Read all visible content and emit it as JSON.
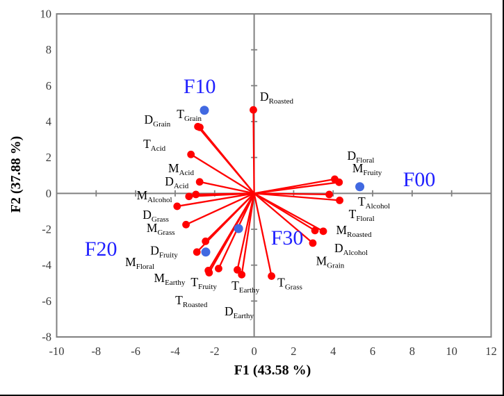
{
  "chart_data": {
    "type": "scatter",
    "subtype": "pca-biplot",
    "xlabel": "F1 (43.58 %)",
    "ylabel": "F2 (37.88 %)",
    "xlim": [
      -10,
      12
    ],
    "ylim": [
      -8,
      10
    ],
    "xticks": [
      -10,
      -8,
      -6,
      -4,
      -2,
      0,
      2,
      4,
      6,
      8,
      10,
      12
    ],
    "yticks": [
      10,
      8,
      6,
      4,
      2,
      0,
      -2,
      -4,
      -6,
      -8
    ],
    "grid": false,
    "legend": "none",
    "colors": {
      "loading": "#FF0000",
      "sample_point": "#4169E1",
      "sample_label": "#1F1FFF",
      "axis": "#808080",
      "text": "#000000"
    },
    "loadings_note": "red vectors drawn from origin (0,0) to each attribute point; label_x/label_y are label anchor positions in data units",
    "loadings": [
      {
        "pre": "D",
        "sub": "Grain",
        "x": -2.85,
        "y": 3.72,
        "label_x": -4.9,
        "label_y": 4.12
      },
      {
        "pre": "T",
        "sub": "Grain",
        "x": -2.75,
        "y": 3.68,
        "label_x": -3.29,
        "label_y": 4.43
      },
      {
        "pre": "T",
        "sub": "Acid",
        "x": -3.2,
        "y": 2.17,
        "label_x": -5.05,
        "label_y": 2.77
      },
      {
        "pre": "M",
        "sub": "Acid",
        "x": -2.76,
        "y": 0.64,
        "label_x": -3.7,
        "label_y": 1.41
      },
      {
        "pre": "D",
        "sub": "Acid",
        "x": -2.95,
        "y": -0.06,
        "label_x": -3.92,
        "label_y": 0.68
      },
      {
        "pre": "M",
        "sub": "Alcohol",
        "x": -3.3,
        "y": -0.17,
        "label_x": -5.05,
        "label_y": -0.1
      },
      {
        "pre": "D",
        "sub": "Grass",
        "x": -3.9,
        "y": -0.72,
        "label_x": -4.98,
        "label_y": -1.18
      },
      {
        "pre": "M",
        "sub": "Grass",
        "x": -3.45,
        "y": -1.74,
        "label_x": -4.73,
        "label_y": -1.92
      },
      {
        "pre": "D",
        "sub": "Fruity",
        "x": -2.46,
        "y": -2.67,
        "label_x": -4.56,
        "label_y": -3.19
      },
      {
        "pre": "M",
        "sub": "Floral",
        "x": -2.9,
        "y": -3.27,
        "label_x": -5.79,
        "label_y": -3.81
      },
      {
        "pre": "M",
        "sub": "Earthy",
        "x": -2.32,
        "y": -4.3,
        "label_x": -4.28,
        "label_y": -4.7
      },
      {
        "pre": "T",
        "sub": "Fruity",
        "x": -1.8,
        "y": -4.19,
        "label_x": -2.55,
        "label_y": -4.94
      },
      {
        "pre": "T",
        "sub": "Roasted",
        "x": -2.28,
        "y": -4.42,
        "label_x": -3.18,
        "label_y": -5.94
      },
      {
        "pre": "T",
        "sub": "Earthy",
        "x": -0.85,
        "y": -4.26,
        "label_x": -0.44,
        "label_y": -5.13
      },
      {
        "pre": "D",
        "sub": "Earthy",
        "x": -0.63,
        "y": -4.53,
        "label_x": -0.76,
        "label_y": -6.56
      },
      {
        "pre": "T",
        "sub": "Grass",
        "x": 0.88,
        "y": -4.61,
        "label_x": 1.81,
        "label_y": -4.97
      },
      {
        "pre": "D",
        "sub": "Roasted",
        "x": -0.04,
        "y": 4.65,
        "label_x": 1.14,
        "label_y": 5.4
      },
      {
        "pre": "D",
        "sub": "Floral",
        "x": 4.08,
        "y": 0.79,
        "label_x": 5.4,
        "label_y": 2.11
      },
      {
        "pre": "M",
        "sub": "Fruity",
        "x": 4.3,
        "y": 0.62,
        "label_x": 5.72,
        "label_y": 1.41
      },
      {
        "pre": "T",
        "sub": "Alcohol",
        "x": 3.8,
        "y": -0.06,
        "label_x": 6.07,
        "label_y": -0.45
      },
      {
        "pre": "T",
        "sub": "Floral",
        "x": 4.33,
        "y": -0.39,
        "label_x": 5.44,
        "label_y": -1.14
      },
      {
        "pre": "M",
        "sub": "Roasted",
        "x": 3.5,
        "y": -2.11,
        "label_x": 5.05,
        "label_y": -2.03
      },
      {
        "pre": "D",
        "sub": "Alcohol",
        "x": 3.08,
        "y": -2.07,
        "label_x": 4.91,
        "label_y": -3.04
      },
      {
        "pre": "M",
        "sub": "Grain",
        "x": 2.97,
        "y": -2.77,
        "label_x": 3.85,
        "label_y": -3.77
      }
    ],
    "samples": [
      {
        "label": "F00",
        "x": 5.35,
        "y": 0.37,
        "label_x": 8.36,
        "label_y": 0.79
      },
      {
        "label": "F10",
        "x": -2.52,
        "y": 4.63,
        "label_x": -2.76,
        "label_y": 5.98
      },
      {
        "label": "F20",
        "x": -2.45,
        "y": -3.27,
        "label_x": -7.76,
        "label_y": -3.08
      },
      {
        "label": "F30",
        "x": -0.79,
        "y": -1.96,
        "label_x": 1.67,
        "label_y": -2.46
      }
    ]
  }
}
